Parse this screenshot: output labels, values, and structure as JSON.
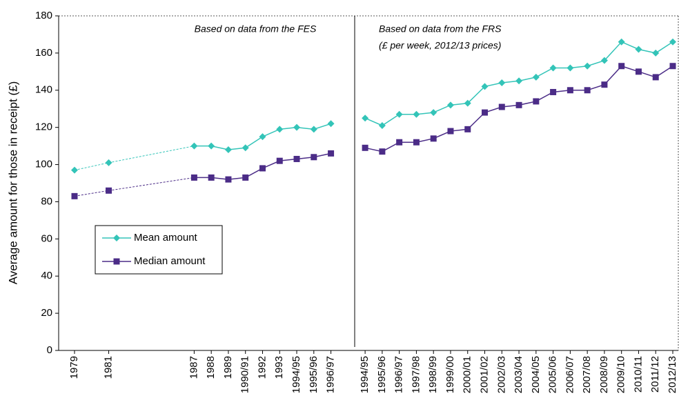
{
  "chart_data": {
    "type": "line",
    "y_label": "Average amount for those in receipt (£)",
    "annotations": [
      "Based on data from the FES",
      "Based on data from the FRS",
      "(£ per week, 2012/13 prices)"
    ],
    "categories": [
      "1979",
      null,
      "1981",
      null,
      null,
      null,
      null,
      "1987",
      "1988",
      "1989",
      "1990/91",
      "1992",
      "1993",
      "1994/95",
      "1995/96",
      "1996/97",
      null,
      "1994/95",
      "1995/96",
      "1996/97",
      "1997/98",
      "1998/99",
      "1999/00",
      "2000/01",
      "2001/02",
      "2002/03",
      "2003/04",
      "2004/05",
      "2005/06",
      "2006/07",
      "2007/08",
      "2008/09",
      "2009/10",
      "2010/11",
      "2011/12",
      "2012/13"
    ],
    "series": [
      {
        "name": "Mean amount",
        "color": "#33c4b8",
        "marker": "diamond",
        "values": [
          97,
          null,
          101,
          null,
          null,
          null,
          null,
          110,
          110,
          108,
          109,
          115,
          119,
          120,
          119,
          122,
          null,
          125,
          121,
          127,
          127,
          128,
          132,
          133,
          142,
          144,
          145,
          147,
          152,
          152,
          153,
          156,
          166,
          162,
          160,
          166
        ]
      },
      {
        "name": "Median amount",
        "color": "#4b2c87",
        "marker": "square",
        "values": [
          83,
          null,
          86,
          null,
          null,
          null,
          null,
          93,
          93,
          92,
          93,
          98,
          102,
          103,
          104,
          106,
          null,
          109,
          107,
          112,
          112,
          114,
          118,
          119,
          128,
          131,
          132,
          134,
          139,
          140,
          140,
          143,
          153,
          150,
          147,
          153
        ]
      }
    ],
    "ylim": [
      0,
      180
    ],
    "yticks": [
      0,
      20,
      40,
      60,
      80,
      100,
      120,
      140,
      160,
      180
    ]
  }
}
